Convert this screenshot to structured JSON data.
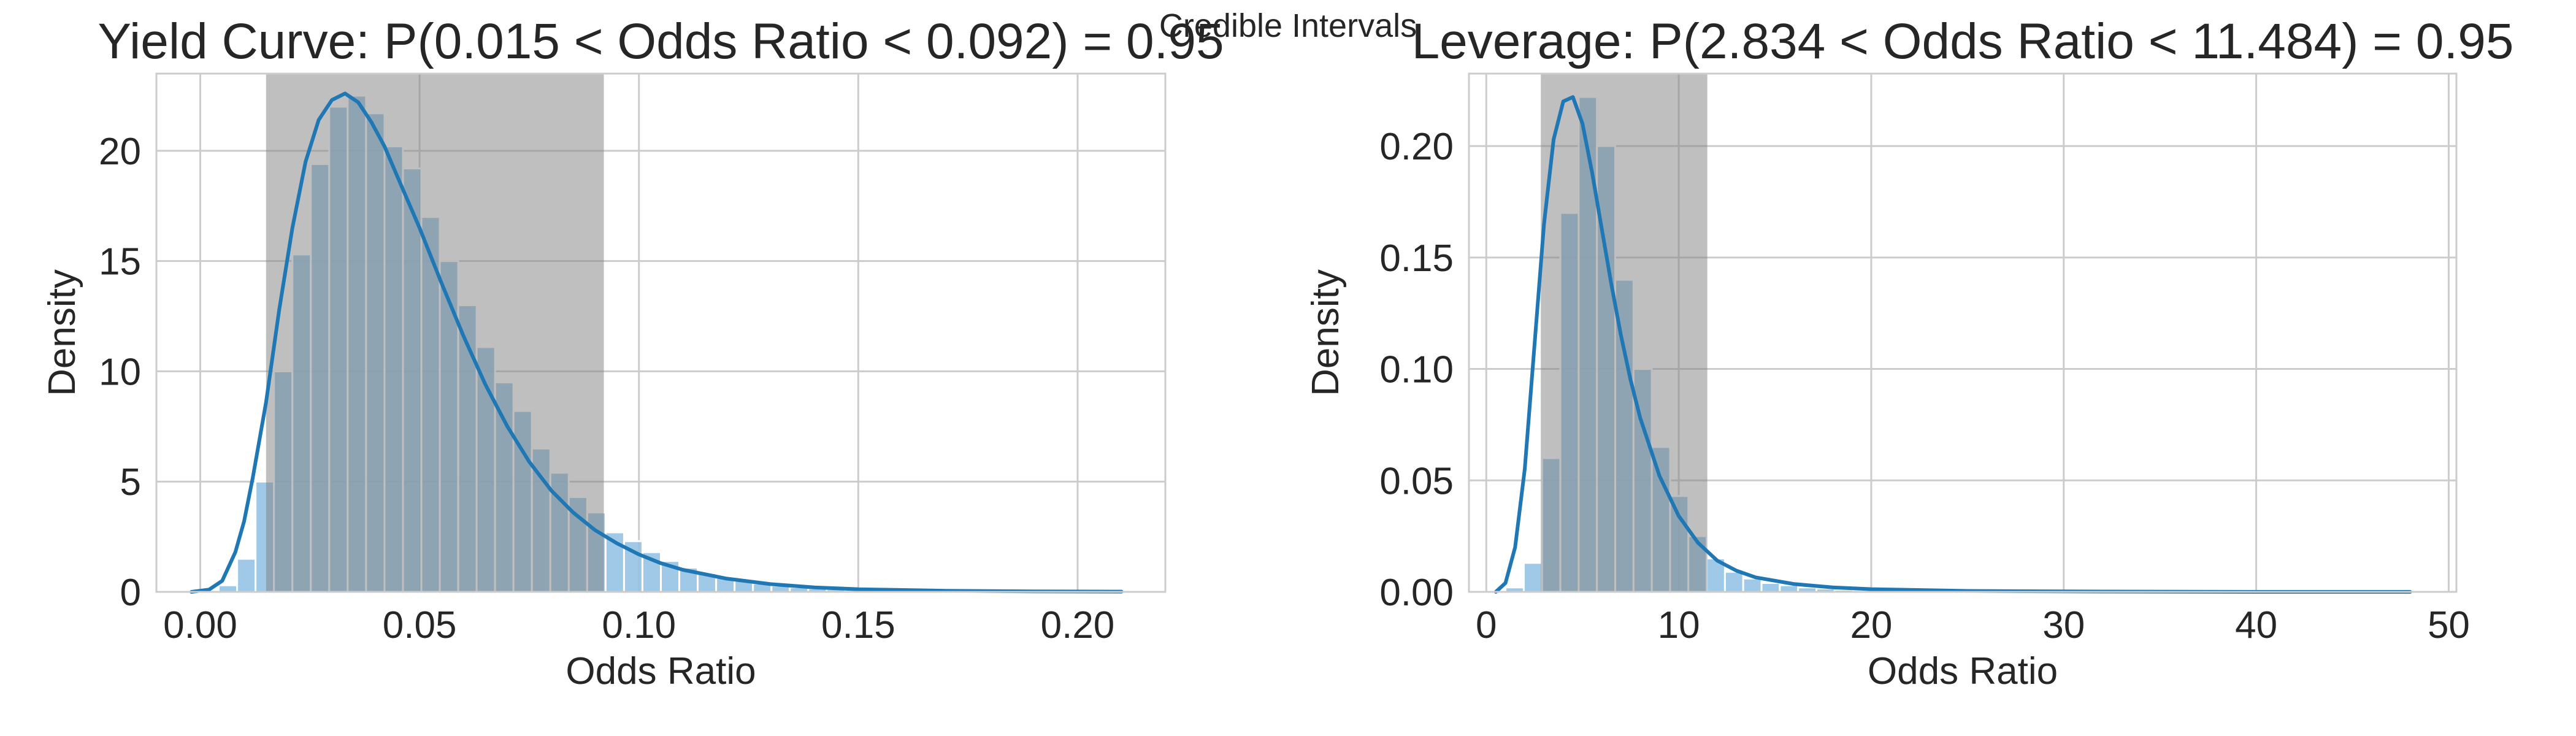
{
  "suptitle": "Credible Intervals",
  "colors": {
    "hist": "#8ebfe3",
    "kde": "#1f77b4",
    "interval": "#808080",
    "grid": "#cccccc",
    "text": "#262626"
  },
  "chart_data": [
    {
      "type": "histogram",
      "title": "Yield Curve: P(0.015 < Odds Ratio < 0.092) = 0.95",
      "xlabel": "Odds Ratio",
      "ylabel": "Density",
      "xlim": [
        -0.01,
        0.22
      ],
      "ylim": [
        0,
        23.5
      ],
      "xticks": [
        0.0,
        0.05,
        0.1,
        0.15,
        0.2
      ],
      "xtick_labels": [
        "0.00",
        "0.05",
        "0.10",
        "0.15",
        "0.20"
      ],
      "yticks": [
        0,
        5,
        10,
        15,
        20
      ],
      "ytick_labels": [
        "0",
        "5",
        "10",
        "15",
        "20"
      ],
      "grid": true,
      "interval": [
        0.015,
        0.092
      ],
      "hist": {
        "bin_start": 0.0,
        "bin_width": 0.0042,
        "heights": [
          0.0,
          0.3,
          1.5,
          5.0,
          10.0,
          15.3,
          19.4,
          22.0,
          22.5,
          21.7,
          20.2,
          19.2,
          17.0,
          15.0,
          13.0,
          11.1,
          9.5,
          8.2,
          6.5,
          5.4,
          4.3,
          3.6,
          2.7,
          2.3,
          1.8,
          1.4,
          1.1,
          0.85,
          0.65,
          0.5,
          0.38,
          0.28,
          0.21,
          0.16,
          0.12,
          0.09,
          0.07,
          0.05,
          0.04,
          0.03,
          0.02,
          0.02,
          0.01,
          0.01,
          0.01,
          0.01,
          0.0,
          0.0,
          0.0,
          0.0
        ]
      },
      "kde": {
        "x": [
          -0.002,
          0.002,
          0.005,
          0.008,
          0.01,
          0.012,
          0.015,
          0.018,
          0.021,
          0.024,
          0.027,
          0.03,
          0.033,
          0.036,
          0.039,
          0.042,
          0.045,
          0.05,
          0.055,
          0.06,
          0.065,
          0.07,
          0.075,
          0.08,
          0.085,
          0.09,
          0.095,
          0.1,
          0.105,
          0.11,
          0.12,
          0.13,
          0.14,
          0.15,
          0.17,
          0.19,
          0.21
        ],
        "y": [
          0.0,
          0.1,
          0.5,
          1.8,
          3.2,
          5.2,
          8.6,
          12.8,
          16.5,
          19.5,
          21.4,
          22.3,
          22.6,
          22.2,
          21.3,
          20.2,
          18.8,
          16.5,
          14.0,
          11.6,
          9.4,
          7.5,
          5.9,
          4.6,
          3.6,
          2.8,
          2.2,
          1.7,
          1.3,
          1.0,
          0.6,
          0.35,
          0.2,
          0.12,
          0.05,
          0.02,
          0.01
        ]
      }
    },
    {
      "type": "histogram",
      "title": "Leverage: P(2.834 < Odds Ratio < 11.484) = 0.95",
      "xlabel": "Odds Ratio",
      "ylabel": "Density",
      "xlim": [
        -0.9,
        50.4
      ],
      "ylim": [
        0,
        0.2325
      ],
      "xticks": [
        0,
        10,
        20,
        30,
        40,
        50
      ],
      "xtick_labels": [
        "0",
        "10",
        "20",
        "30",
        "40",
        "50"
      ],
      "yticks": [
        0.0,
        0.05,
        0.1,
        0.15,
        0.2
      ],
      "ytick_labels": [
        "0.00",
        "0.05",
        "0.10",
        "0.15",
        "0.20"
      ],
      "grid": true,
      "interval": [
        2.834,
        11.484
      ],
      "hist": {
        "bin_start": 1.0,
        "bin_width": 0.95,
        "heights": [
          0.002,
          0.013,
          0.06,
          0.17,
          0.222,
          0.2,
          0.14,
          0.1,
          0.065,
          0.043,
          0.025,
          0.015,
          0.009,
          0.006,
          0.004,
          0.003,
          0.002,
          0.0015,
          0.001,
          0.0008,
          0.0006,
          0.0004,
          0.0003,
          0.0002,
          0.0002,
          0.0001,
          0.0001,
          0.0001,
          0.0001,
          0.0,
          0.0,
          0.0,
          0.0,
          0.0,
          0.0,
          0.0,
          0.0,
          0.0,
          0.0,
          0.0,
          0.0,
          0.0,
          0.0,
          0.0,
          0.0,
          0.0,
          0.0,
          0.0,
          0.0,
          0.0
        ]
      },
      "kde": {
        "x": [
          0.5,
          1.0,
          1.5,
          2.0,
          2.5,
          3.0,
          3.5,
          4.0,
          4.5,
          5.0,
          5.5,
          6.0,
          6.5,
          7.0,
          7.5,
          8.0,
          9.0,
          10.0,
          11.0,
          12.0,
          13.0,
          14.0,
          16.0,
          18.0,
          20.0,
          25.0,
          30.0,
          40.0,
          48.0
        ],
        "y": [
          0.0,
          0.004,
          0.02,
          0.055,
          0.11,
          0.165,
          0.203,
          0.22,
          0.222,
          0.21,
          0.188,
          0.163,
          0.138,
          0.115,
          0.095,
          0.078,
          0.052,
          0.034,
          0.022,
          0.014,
          0.0095,
          0.0065,
          0.0035,
          0.002,
          0.0012,
          0.0004,
          0.0002,
          0.0,
          0.0
        ]
      }
    }
  ]
}
